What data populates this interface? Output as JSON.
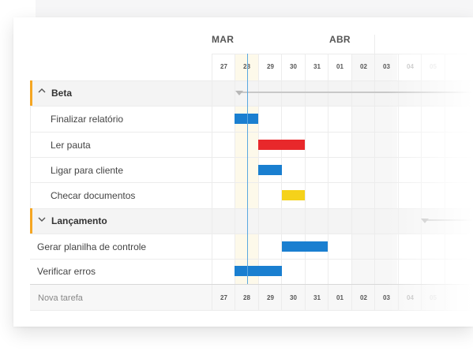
{
  "months": [
    "MAR",
    "ABR"
  ],
  "days": [
    "27",
    "28",
    "29",
    "30",
    "31",
    "01",
    "02",
    "03",
    "04",
    "05"
  ],
  "groups": [
    {
      "label": "Beta",
      "expanded": true
    },
    {
      "label": "Lançamento",
      "expanded": false
    }
  ],
  "tasks": [
    {
      "label": "Finalizar relatório"
    },
    {
      "label": "Ler pauta"
    },
    {
      "label": "Ligar para cliente"
    },
    {
      "label": "Checar documentos"
    },
    {
      "label": "Gerar planilha de controle"
    },
    {
      "label": "Verificar erros"
    }
  ],
  "footer": {
    "new_task": "Nova tarefa"
  },
  "colors": {
    "blue": "#1a7fd0",
    "red": "#e8282b",
    "yellow": "#f5d21a",
    "accent": "#f5a623",
    "today": "#5aa8e0"
  },
  "icons": {
    "collapse": "chevron-up-icon",
    "expand": "chevron-down-icon",
    "summary": "caret-down-icon"
  }
}
